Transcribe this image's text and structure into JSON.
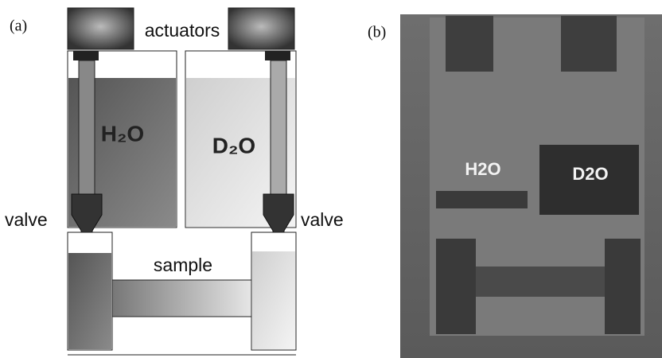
{
  "panel_a": {
    "tag": "(a)",
    "actuators": "actuators",
    "left_tank": "H₂O",
    "right_tank": "D₂O",
    "left_valve": "valve",
    "right_valve": "valve",
    "sample": "sample"
  },
  "panel_b": {
    "tag": "(b)",
    "left_label": "H2O",
    "right_label": "D2O"
  }
}
